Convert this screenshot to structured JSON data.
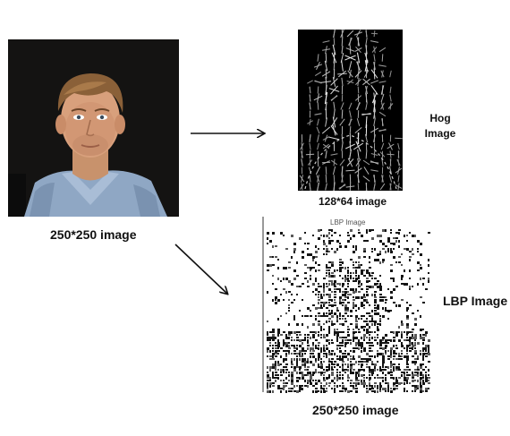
{
  "source_image": {
    "caption": "250*250 image"
  },
  "hog": {
    "caption": "128*64 image",
    "label_line1": "Hog",
    "label_line2": "Image"
  },
  "lbp": {
    "inner_title": "LBP Image",
    "label": "LBP Image",
    "caption": "250*250 image"
  },
  "colors": {
    "background": "#ffffff",
    "text": "#111111",
    "hog_background": "#000000",
    "arrow": "#111111"
  }
}
